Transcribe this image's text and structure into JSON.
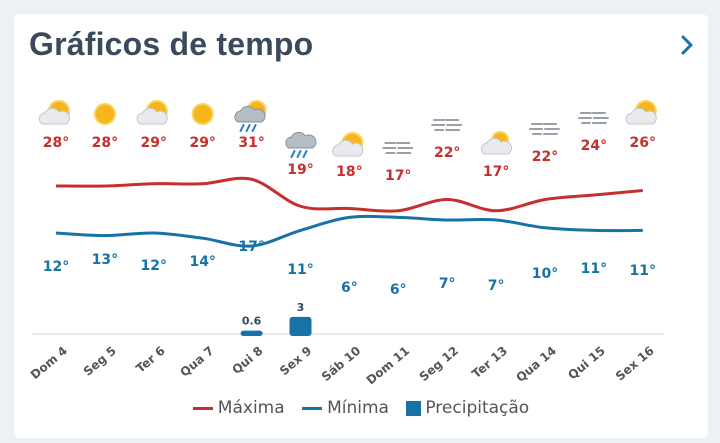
{
  "header": {
    "title": "Gráficos de tempo"
  },
  "legend": {
    "max_label": "Máxima",
    "min_label": "Mínima",
    "precip_label": "Precipitação"
  },
  "colors": {
    "max": "#c62f2d",
    "min": "#1773a6",
    "precip": "#1773a6",
    "title": "#3a4a5c",
    "accent": "#1773a6"
  },
  "chart_data": {
    "type": "line",
    "categories": [
      "Dom 4",
      "Seg 5",
      "Ter 6",
      "Qua 7",
      "Qui 8",
      "Sex 9",
      "Sáb 10",
      "Dom 11",
      "Seg 12",
      "Ter 13",
      "Qua 14",
      "Qui 15",
      "Sex 16"
    ],
    "series": [
      {
        "name": "Máxima",
        "values": [
          28,
          28,
          29,
          29,
          31,
          19,
          18,
          17,
          22,
          17,
          22,
          24,
          26
        ],
        "labels": [
          "28°",
          "28°",
          "29°",
          "29°",
          "31°",
          "19°",
          "18°",
          "17°",
          "22°",
          "17°",
          "22°",
          "24°",
          "26°"
        ]
      },
      {
        "name": "Mínima",
        "values": [
          12,
          13,
          12,
          14,
          17,
          11,
          6,
          6,
          7,
          7,
          10,
          11,
          11
        ],
        "labels": [
          "12°",
          "13°",
          "12°",
          "14°",
          "17°",
          "11°",
          "6°",
          "6°",
          "7°",
          "7°",
          "10°",
          "11°",
          "11°"
        ]
      },
      {
        "name": "Precipitação",
        "values": [
          0,
          0,
          0,
          0,
          0.6,
          3,
          0,
          0,
          0,
          0,
          0,
          0,
          0
        ],
        "labels": [
          "",
          "",
          "",
          "",
          "0.6",
          "3",
          "",
          "",
          "",
          "",
          "",
          "",
          ""
        ]
      }
    ],
    "icons": [
      "partly-sunny-icon",
      "sun-icon",
      "partly-sunny-icon",
      "sun-icon",
      "sun-rain-icon",
      "rain-icon",
      "partly-sunny-icon",
      "fog-icon",
      "fog-icon",
      "partly-cloudy-icon",
      "fog-icon",
      "fog-icon",
      "partly-sunny-icon"
    ]
  }
}
